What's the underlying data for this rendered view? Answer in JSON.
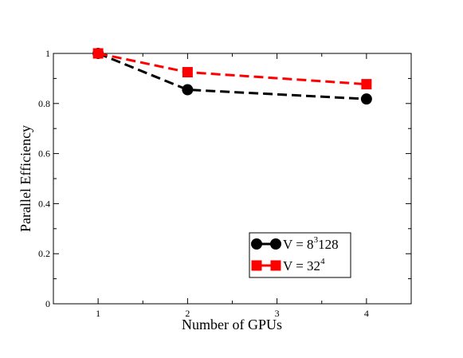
{
  "chart_data": {
    "type": "line",
    "xlabel": "Number of GPUs",
    "ylabel": "Parallel Efficiency",
    "xlim": [
      0.5,
      4.5
    ],
    "ylim": [
      0,
      1
    ],
    "x_ticks": [
      "1",
      "2",
      "3",
      "4"
    ],
    "y_ticks": [
      "0",
      "0.2",
      "0.4",
      "0.6",
      "0.8",
      "1"
    ],
    "x_tick_values": [
      1,
      2,
      3,
      4
    ],
    "y_tick_values": [
      0,
      0.2,
      0.4,
      0.6,
      0.8,
      1.0
    ],
    "grid": false,
    "legend_position": "bottom-right",
    "series": [
      {
        "name_prefix": "V = 8",
        "name_sup": "3",
        "name_suffix": "128",
        "x": [
          1,
          2,
          4
        ],
        "values": [
          1.0,
          0.855,
          0.818
        ],
        "color": "#000000",
        "marker": "circle",
        "line_style": "dashed"
      },
      {
        "name_prefix": "V = 32",
        "name_sup": "4",
        "name_suffix": "",
        "x": [
          1,
          2,
          4
        ],
        "values": [
          1.0,
          0.925,
          0.877
        ],
        "color": "#ff0000",
        "marker": "square",
        "line_style": "dashed"
      }
    ]
  }
}
